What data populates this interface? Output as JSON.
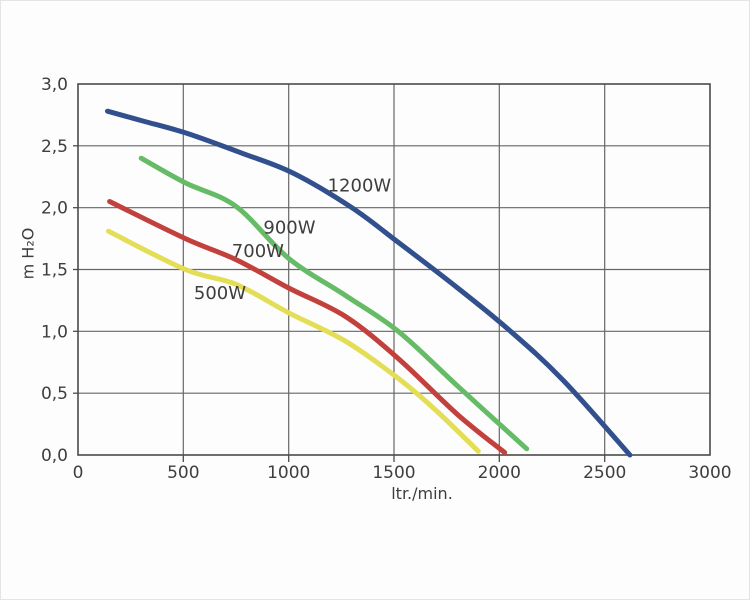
{
  "figure": {
    "background_color": "#fdfdfd",
    "text_color": "#3e3e3e",
    "grid_color": "#666666",
    "frame_color": "#4b4b4b"
  },
  "chart_data": {
    "type": "line",
    "title": "",
    "xlabel": "ltr./min.",
    "ylabel": "m H₂O",
    "xlim": [
      0,
      3000
    ],
    "ylim": [
      0,
      3.0
    ],
    "grid": true,
    "legend_position": "inline-curve-labels",
    "x_ticks": [
      0,
      500,
      1000,
      1500,
      2000,
      2500,
      3000
    ],
    "x_tick_labels": [
      "0",
      "500",
      "1000",
      "1500",
      "2000",
      "2500",
      "3000"
    ],
    "y_ticks": [
      0,
      0.5,
      1.0,
      1.5,
      2.0,
      2.5,
      3.0
    ],
    "y_tick_labels": [
      "0,0",
      "0,5",
      "1,0",
      "1,5",
      "2,0",
      "2,5",
      "3,0"
    ],
    "series": [
      {
        "name": "1200W",
        "color": "#32508e",
        "label_pos": [
          1185,
          2.18
        ],
        "points": [
          [
            140,
            2.78
          ],
          [
            310,
            2.7
          ],
          [
            520,
            2.6
          ],
          [
            780,
            2.44
          ],
          [
            1020,
            2.28
          ],
          [
            1300,
            2.0
          ],
          [
            1520,
            1.72
          ],
          [
            1780,
            1.38
          ],
          [
            2040,
            1.02
          ],
          [
            2300,
            0.61
          ],
          [
            2620,
            0.0
          ]
        ]
      },
      {
        "name": "900W",
        "color": "#66bb66",
        "label_pos": [
          880,
          1.84
        ],
        "points": [
          [
            300,
            2.4
          ],
          [
            510,
            2.2
          ],
          [
            750,
            2.01
          ],
          [
            1000,
            1.59
          ],
          [
            1270,
            1.29
          ],
          [
            1520,
            1.0
          ],
          [
            1800,
            0.56
          ],
          [
            2130,
            0.05
          ]
        ]
      },
      {
        "name": "700W",
        "color": "#c2413c",
        "label_pos": [
          730,
          1.65
        ],
        "points": [
          [
            150,
            2.05
          ],
          [
            510,
            1.75
          ],
          [
            750,
            1.58
          ],
          [
            1000,
            1.35
          ],
          [
            1270,
            1.12
          ],
          [
            1520,
            0.78
          ],
          [
            1800,
            0.33
          ],
          [
            2025,
            0.02
          ]
        ]
      },
      {
        "name": "500W",
        "color": "#e3de55",
        "label_pos": [
          550,
          1.31
        ],
        "points": [
          [
            145,
            1.81
          ],
          [
            510,
            1.5
          ],
          [
            750,
            1.38
          ],
          [
            1000,
            1.15
          ],
          [
            1270,
            0.92
          ],
          [
            1520,
            0.62
          ],
          [
            1700,
            0.36
          ],
          [
            1900,
            0.03
          ]
        ]
      }
    ]
  }
}
